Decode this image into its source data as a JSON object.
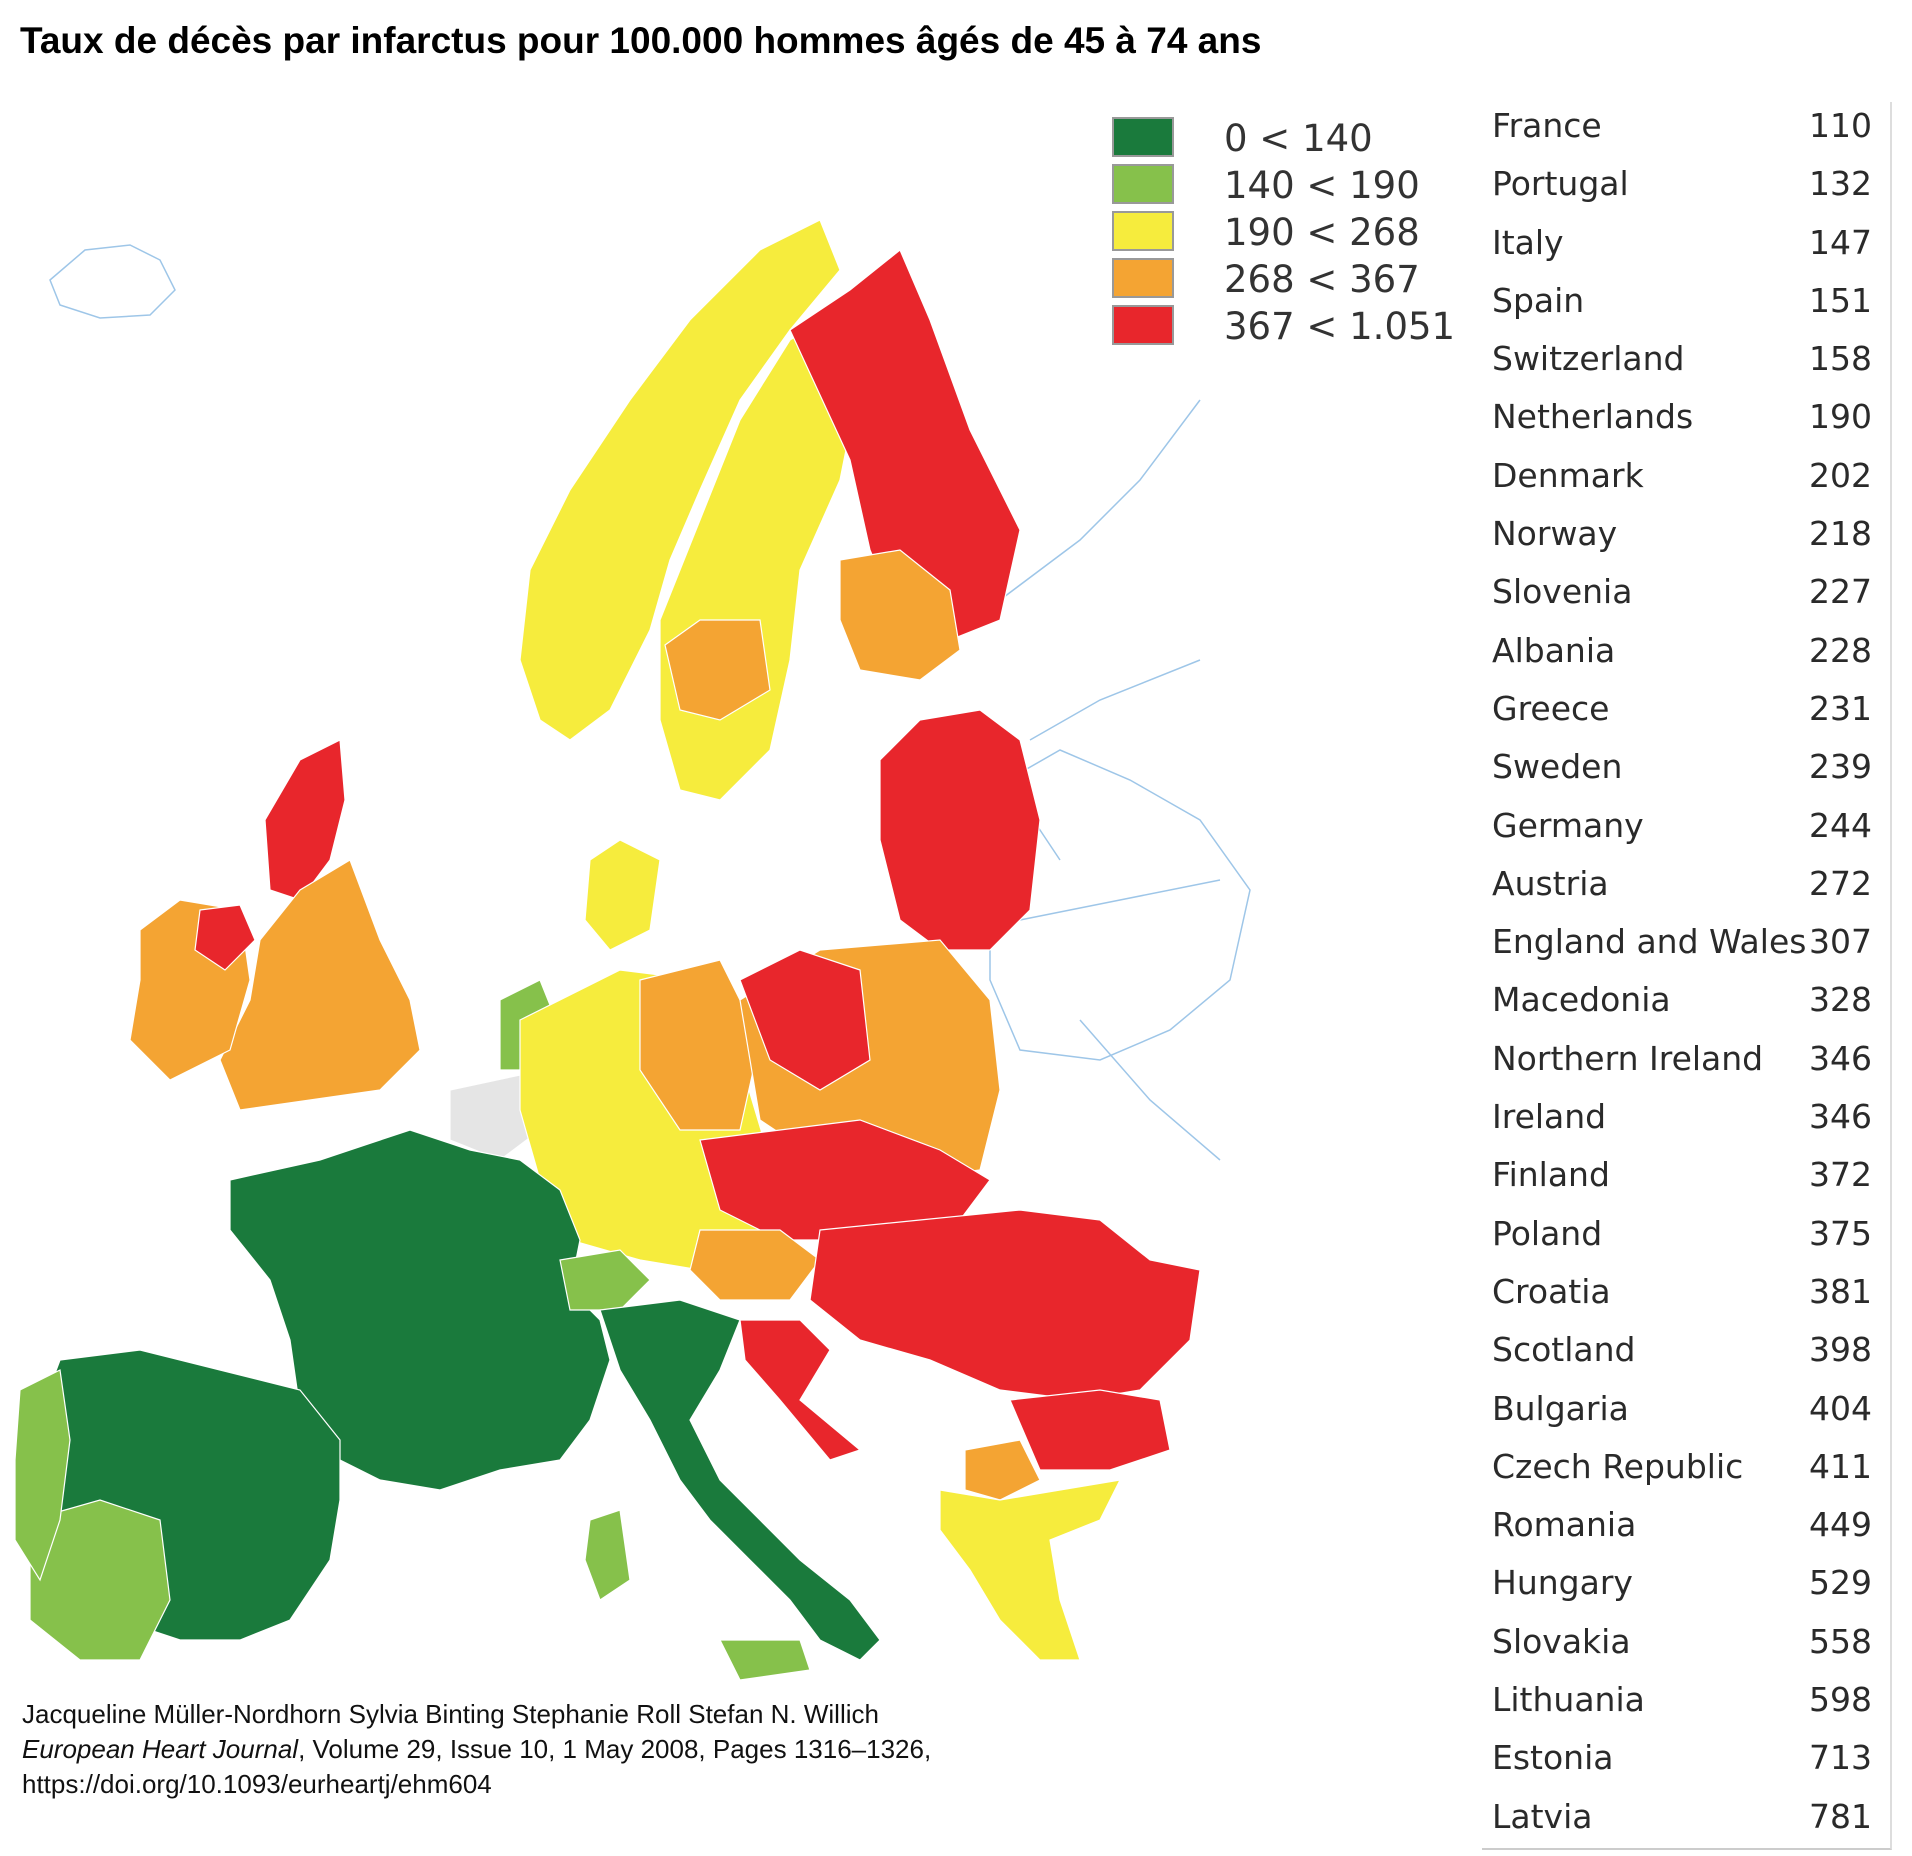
{
  "title": "Taux de décès par infarctus pour 100.000 hommes âgés de 45 à 74 ans",
  "legend": [
    {
      "label": "0 < 140",
      "color": "#1a7a3c"
    },
    {
      "label": "140 < 190",
      "color": "#86c14b"
    },
    {
      "label": "190 < 268",
      "color": "#f6ec3d"
    },
    {
      "label": "268 < 367",
      "color": "#f4a433"
    },
    {
      "label": "367 < 1.051",
      "color": "#e8262c"
    }
  ],
  "countries": [
    {
      "name": "France",
      "value": "110"
    },
    {
      "name": "Portugal",
      "value": "132"
    },
    {
      "name": "Italy",
      "value": "147"
    },
    {
      "name": "Spain",
      "value": "151"
    },
    {
      "name": "Switzerland",
      "value": "158"
    },
    {
      "name": "Netherlands",
      "value": "190"
    },
    {
      "name": "Denmark",
      "value": "202"
    },
    {
      "name": "Norway",
      "value": "218"
    },
    {
      "name": "Slovenia",
      "value": "227"
    },
    {
      "name": "Albania",
      "value": "228"
    },
    {
      "name": "Greece",
      "value": "231"
    },
    {
      "name": "Sweden",
      "value": "239"
    },
    {
      "name": "Germany",
      "value": "244"
    },
    {
      "name": "Austria",
      "value": "272"
    },
    {
      "name": "England and Wales",
      "value": "307"
    },
    {
      "name": "Macedonia",
      "value": "328"
    },
    {
      "name": "Northern Ireland",
      "value": "346"
    },
    {
      "name": "Ireland",
      "value": "346"
    },
    {
      "name": "Finland",
      "value": "372"
    },
    {
      "name": "Poland",
      "value": "375"
    },
    {
      "name": "Croatia",
      "value": "381"
    },
    {
      "name": "Scotland",
      "value": "398"
    },
    {
      "name": "Bulgaria",
      "value": "404"
    },
    {
      "name": "Czech Republic",
      "value": "411"
    },
    {
      "name": "Romania",
      "value": "449"
    },
    {
      "name": "Hungary",
      "value": "529"
    },
    {
      "name": "Slovakia",
      "value": "558"
    },
    {
      "name": "Lithuania",
      "value": "598"
    },
    {
      "name": "Estonia",
      "value": "713"
    },
    {
      "name": "Latvia",
      "value": "781"
    }
  ],
  "citation": {
    "authors": "Jacqueline Müller-Nordhorn  Sylvia Binting  Stephanie Roll  Stefan N. Willich",
    "journal": "European Heart Journal",
    "details": ", Volume 29, Issue 10, 1 May 2008, Pages 1316–1326,",
    "doi": "https://doi.org/10.1093/eurheartj/ehm604"
  }
}
